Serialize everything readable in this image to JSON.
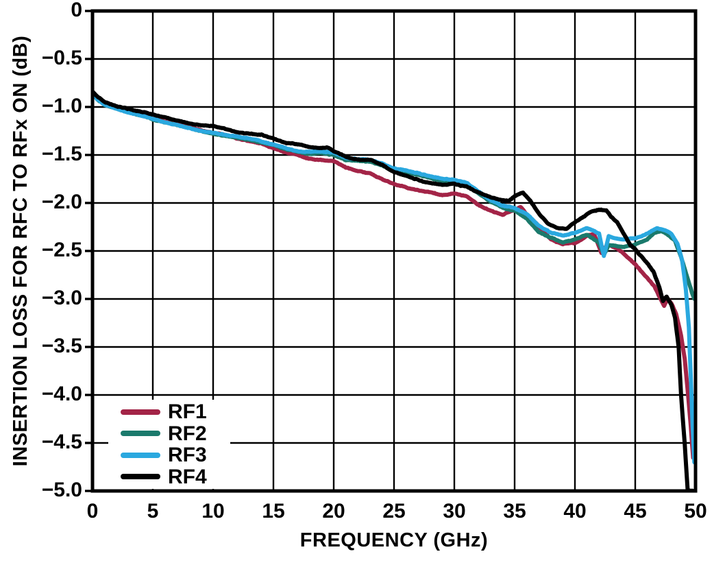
{
  "chart_data": {
    "type": "line",
    "title": "",
    "xlabel": "FREQUENCY (GHz)",
    "ylabel": "INSERTION LOSS FOR RFC TO RFx ON (dB)",
    "xlim": [
      0,
      50
    ],
    "ylim": [
      -5,
      0
    ],
    "grid": true,
    "legend_position": "lower-left",
    "x_ticks": [
      0,
      5,
      10,
      15,
      20,
      25,
      30,
      35,
      40,
      45,
      50
    ],
    "x_tick_labels": [
      "0",
      "5",
      "10",
      "15",
      "20",
      "25",
      "30",
      "35",
      "40",
      "45",
      "50"
    ],
    "y_ticks": [
      0,
      -0.5,
      -1.0,
      -1.5,
      -2.0,
      -2.5,
      -3.0,
      -3.5,
      -4.0,
      -4.5,
      -5.0
    ],
    "y_tick_labels": [
      "0",
      "−0.5",
      "−1.0",
      "−1.5",
      "−2.0",
      "−2.5",
      "−3.0",
      "−3.5",
      "−4.0",
      "−4.5",
      "−5.0"
    ],
    "axis_color": "#000000",
    "series": [
      {
        "name": "RF1",
        "color": "#A32447",
        "points": [
          [
            0,
            -0.85
          ],
          [
            0.4,
            -0.91
          ],
          [
            1,
            -0.97
          ],
          [
            2,
            -1.01
          ],
          [
            3,
            -1.05
          ],
          [
            4,
            -1.08
          ],
          [
            5,
            -1.11
          ],
          [
            6,
            -1.15
          ],
          [
            7,
            -1.18
          ],
          [
            8,
            -1.21
          ],
          [
            9,
            -1.24
          ],
          [
            10,
            -1.27
          ],
          [
            11,
            -1.29
          ],
          [
            12,
            -1.33
          ],
          [
            13,
            -1.36
          ],
          [
            14,
            -1.38
          ],
          [
            15,
            -1.43
          ],
          [
            16,
            -1.47
          ],
          [
            17,
            -1.5
          ],
          [
            18,
            -1.54
          ],
          [
            19,
            -1.55
          ],
          [
            20,
            -1.56
          ],
          [
            21,
            -1.63
          ],
          [
            22,
            -1.67
          ],
          [
            23,
            -1.69
          ],
          [
            24,
            -1.75
          ],
          [
            25,
            -1.8
          ],
          [
            26,
            -1.84
          ],
          [
            27,
            -1.87
          ],
          [
            28,
            -1.89
          ],
          [
            29,
            -1.92
          ],
          [
            30,
            -1.9
          ],
          [
            31,
            -1.93
          ],
          [
            32,
            -2.02
          ],
          [
            33,
            -2.08
          ],
          [
            34,
            -2.12
          ],
          [
            35,
            -2.07
          ],
          [
            35.5,
            -2.04
          ],
          [
            36,
            -2.12
          ],
          [
            37,
            -2.24
          ],
          [
            38,
            -2.38
          ],
          [
            39,
            -2.43
          ],
          [
            40,
            -2.42
          ],
          [
            41,
            -2.34
          ],
          [
            41.6,
            -2.33
          ],
          [
            42.2,
            -2.52
          ],
          [
            42.7,
            -2.43
          ],
          [
            43.5,
            -2.47
          ],
          [
            44,
            -2.52
          ],
          [
            45,
            -2.64
          ],
          [
            46,
            -2.78
          ],
          [
            46.6,
            -2.87
          ],
          [
            47.1,
            -3.0
          ],
          [
            47.4,
            -3.07
          ],
          [
            47.7,
            -3.0
          ],
          [
            48,
            -3.05
          ],
          [
            48.4,
            -3.16
          ],
          [
            48.8,
            -3.38
          ],
          [
            49.1,
            -3.62
          ],
          [
            49.4,
            -4.02
          ],
          [
            49.6,
            -4.32
          ],
          [
            49.8,
            -4.65
          ]
        ]
      },
      {
        "name": "RF2",
        "color": "#1B7A6C",
        "points": [
          [
            0,
            -0.86
          ],
          [
            0.4,
            -0.92
          ],
          [
            1,
            -0.98
          ],
          [
            2,
            -1.02
          ],
          [
            3,
            -1.06
          ],
          [
            4,
            -1.09
          ],
          [
            5,
            -1.13
          ],
          [
            6,
            -1.16
          ],
          [
            7,
            -1.19
          ],
          [
            8,
            -1.22
          ],
          [
            9,
            -1.25
          ],
          [
            10,
            -1.28
          ],
          [
            11,
            -1.3
          ],
          [
            12,
            -1.32
          ],
          [
            13,
            -1.34
          ],
          [
            14,
            -1.37
          ],
          [
            15,
            -1.4
          ],
          [
            16,
            -1.44
          ],
          [
            17,
            -1.47
          ],
          [
            18,
            -1.49
          ],
          [
            19,
            -1.48
          ],
          [
            20,
            -1.5
          ],
          [
            21,
            -1.55
          ],
          [
            22,
            -1.56
          ],
          [
            23,
            -1.57
          ],
          [
            24,
            -1.61
          ],
          [
            25,
            -1.66
          ],
          [
            26,
            -1.68
          ],
          [
            27,
            -1.71
          ],
          [
            28,
            -1.74
          ],
          [
            29,
            -1.77
          ],
          [
            30,
            -1.78
          ],
          [
            31,
            -1.81
          ],
          [
            32,
            -1.9
          ],
          [
            33,
            -1.99
          ],
          [
            34,
            -2.05
          ],
          [
            35,
            -2.08
          ],
          [
            36,
            -2.16
          ],
          [
            37,
            -2.3
          ],
          [
            38,
            -2.36
          ],
          [
            39,
            -2.41
          ],
          [
            40,
            -2.38
          ],
          [
            41,
            -2.33
          ],
          [
            42,
            -2.42
          ],
          [
            42.4,
            -2.54
          ],
          [
            42.8,
            -2.44
          ],
          [
            43.5,
            -2.45
          ],
          [
            44,
            -2.46
          ],
          [
            45,
            -2.43
          ],
          [
            46,
            -2.38
          ],
          [
            46.6,
            -2.31
          ],
          [
            47.2,
            -2.29
          ],
          [
            47.8,
            -2.34
          ],
          [
            48.3,
            -2.39
          ],
          [
            48.8,
            -2.56
          ],
          [
            49.3,
            -2.76
          ],
          [
            49.7,
            -2.93
          ],
          [
            49.9,
            -3.0
          ]
        ]
      },
      {
        "name": "RF3",
        "color": "#2AA8DF",
        "points": [
          [
            0,
            -0.86
          ],
          [
            0.4,
            -0.92
          ],
          [
            1,
            -0.98
          ],
          [
            2,
            -1.02
          ],
          [
            3,
            -1.06
          ],
          [
            4,
            -1.09
          ],
          [
            5,
            -1.12
          ],
          [
            6,
            -1.16
          ],
          [
            7,
            -1.19
          ],
          [
            8,
            -1.22
          ],
          [
            9,
            -1.25
          ],
          [
            10,
            -1.27
          ],
          [
            11,
            -1.29
          ],
          [
            12,
            -1.31
          ],
          [
            13,
            -1.33
          ],
          [
            14,
            -1.36
          ],
          [
            15,
            -1.39
          ],
          [
            16,
            -1.43
          ],
          [
            17,
            -1.46
          ],
          [
            18,
            -1.47
          ],
          [
            19,
            -1.46
          ],
          [
            20,
            -1.48
          ],
          [
            21,
            -1.53
          ],
          [
            22,
            -1.54
          ],
          [
            23,
            -1.55
          ],
          [
            24,
            -1.59
          ],
          [
            25,
            -1.64
          ],
          [
            26,
            -1.66
          ],
          [
            27,
            -1.69
          ],
          [
            28,
            -1.72
          ],
          [
            29,
            -1.75
          ],
          [
            30,
            -1.76
          ],
          [
            31,
            -1.79
          ],
          [
            32,
            -1.88
          ],
          [
            33,
            -1.97
          ],
          [
            34,
            -2.03
          ],
          [
            35,
            -2.05
          ],
          [
            36,
            -2.12
          ],
          [
            37,
            -2.24
          ],
          [
            38,
            -2.31
          ],
          [
            39,
            -2.34
          ],
          [
            40,
            -2.31
          ],
          [
            41,
            -2.26
          ],
          [
            42,
            -2.32
          ],
          [
            42.4,
            -2.55
          ],
          [
            42.8,
            -2.35
          ],
          [
            43.5,
            -2.37
          ],
          [
            44,
            -2.38
          ],
          [
            45,
            -2.37
          ],
          [
            46,
            -2.32
          ],
          [
            46.8,
            -2.26
          ],
          [
            47.4,
            -2.28
          ],
          [
            48,
            -2.32
          ],
          [
            48.5,
            -2.42
          ],
          [
            48.9,
            -2.6
          ],
          [
            49.2,
            -2.9
          ],
          [
            49.45,
            -3.3
          ],
          [
            49.6,
            -3.8
          ],
          [
            49.75,
            -4.3
          ],
          [
            49.9,
            -4.7
          ]
        ]
      },
      {
        "name": "RF4",
        "color": "#000000",
        "points": [
          [
            0,
            -0.84
          ],
          [
            0.4,
            -0.89
          ],
          [
            1,
            -0.95
          ],
          [
            2,
            -0.99
          ],
          [
            3,
            -1.02
          ],
          [
            4,
            -1.05
          ],
          [
            5,
            -1.08
          ],
          [
            6,
            -1.11
          ],
          [
            7,
            -1.14
          ],
          [
            8,
            -1.17
          ],
          [
            9,
            -1.19
          ],
          [
            10,
            -1.2
          ],
          [
            11,
            -1.23
          ],
          [
            12,
            -1.26
          ],
          [
            13,
            -1.28
          ],
          [
            14,
            -1.29
          ],
          [
            15,
            -1.33
          ],
          [
            16,
            -1.37
          ],
          [
            17,
            -1.39
          ],
          [
            18,
            -1.42
          ],
          [
            19,
            -1.43
          ],
          [
            19.5,
            -1.42
          ],
          [
            20,
            -1.46
          ],
          [
            21,
            -1.52
          ],
          [
            22,
            -1.55
          ],
          [
            23,
            -1.55
          ],
          [
            24,
            -1.6
          ],
          [
            25,
            -1.68
          ],
          [
            26,
            -1.72
          ],
          [
            27,
            -1.76
          ],
          [
            28,
            -1.79
          ],
          [
            29,
            -1.81
          ],
          [
            30,
            -1.8
          ],
          [
            31,
            -1.83
          ],
          [
            32,
            -1.89
          ],
          [
            33,
            -1.94
          ],
          [
            34,
            -1.97
          ],
          [
            34.5,
            -1.98
          ],
          [
            35,
            -1.93
          ],
          [
            35.7,
            -1.89
          ],
          [
            36.3,
            -1.98
          ],
          [
            37,
            -2.11
          ],
          [
            37.7,
            -2.21
          ],
          [
            38.5,
            -2.26
          ],
          [
            39.3,
            -2.27
          ],
          [
            40,
            -2.2
          ],
          [
            40.6,
            -2.15
          ],
          [
            41.3,
            -2.09
          ],
          [
            42,
            -2.07
          ],
          [
            42.6,
            -2.08
          ],
          [
            43,
            -2.14
          ],
          [
            43.5,
            -2.2
          ],
          [
            44,
            -2.31
          ],
          [
            44.6,
            -2.44
          ],
          [
            45,
            -2.48
          ],
          [
            46,
            -2.63
          ],
          [
            46.5,
            -2.71
          ],
          [
            47,
            -2.88
          ],
          [
            47.3,
            -3.02
          ],
          [
            47.6,
            -2.97
          ],
          [
            48,
            -3.06
          ],
          [
            48.3,
            -3.2
          ],
          [
            48.6,
            -3.5
          ],
          [
            48.8,
            -4.0
          ],
          [
            49.1,
            -4.5
          ],
          [
            49.35,
            -5.0
          ],
          [
            50,
            -5.0
          ]
        ]
      }
    ]
  }
}
